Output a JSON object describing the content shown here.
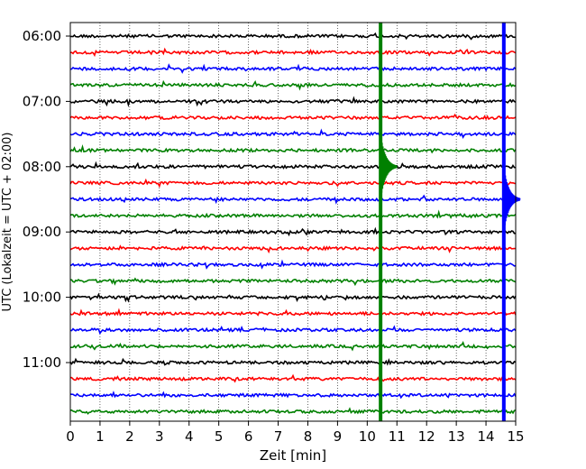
{
  "chart_data": {
    "type": "line",
    "title": "",
    "xlabel": "Zeit  [min]",
    "ylabel": "UTC (Lokalzeit = UTC + 02:00)",
    "xlim": [
      0,
      15
    ],
    "x_ticks": [
      "0",
      "1",
      "2",
      "3",
      "4",
      "5",
      "6",
      "7",
      "8",
      "9",
      "10",
      "11",
      "12",
      "13",
      "14",
      "15"
    ],
    "y_ticks": [
      "06:00",
      "07:00",
      "08:00",
      "09:00",
      "10:00",
      "11:00"
    ],
    "grid": "vertical dotted",
    "trace_interval_minutes": 15,
    "start_time": "06:00",
    "trace_colors": [
      "#000000",
      "#ff0000",
      "#0000ff",
      "#008000"
    ],
    "traces": [
      {
        "start": "06:00",
        "color": "#000000"
      },
      {
        "start": "06:15",
        "color": "#ff0000"
      },
      {
        "start": "06:30",
        "color": "#0000ff"
      },
      {
        "start": "06:45",
        "color": "#008000"
      },
      {
        "start": "07:00",
        "color": "#000000"
      },
      {
        "start": "07:15",
        "color": "#ff0000"
      },
      {
        "start": "07:30",
        "color": "#0000ff"
      },
      {
        "start": "07:45",
        "color": "#008000"
      },
      {
        "start": "08:00",
        "color": "#000000"
      },
      {
        "start": "08:15",
        "color": "#ff0000"
      },
      {
        "start": "08:30",
        "color": "#0000ff"
      },
      {
        "start": "08:45",
        "color": "#008000"
      },
      {
        "start": "09:00",
        "color": "#000000"
      },
      {
        "start": "09:15",
        "color": "#ff0000"
      },
      {
        "start": "09:30",
        "color": "#0000ff"
      },
      {
        "start": "09:45",
        "color": "#008000"
      },
      {
        "start": "10:00",
        "color": "#000000"
      },
      {
        "start": "10:15",
        "color": "#ff0000"
      },
      {
        "start": "10:30",
        "color": "#0000ff"
      },
      {
        "start": "10:45",
        "color": "#008000"
      },
      {
        "start": "11:00",
        "color": "#000000"
      },
      {
        "start": "11:15",
        "color": "#ff0000"
      },
      {
        "start": "11:30",
        "color": "#0000ff"
      },
      {
        "start": "11:45",
        "color": "#008000"
      }
    ],
    "events": [
      {
        "start_trace": 8,
        "minute": 10.45,
        "color": "#008000",
        "note": "large event, saturated across all traces"
      },
      {
        "start_trace": 10,
        "minute": 14.6,
        "color": "#0000ff",
        "note": "large event, saturated across all traces"
      }
    ]
  }
}
